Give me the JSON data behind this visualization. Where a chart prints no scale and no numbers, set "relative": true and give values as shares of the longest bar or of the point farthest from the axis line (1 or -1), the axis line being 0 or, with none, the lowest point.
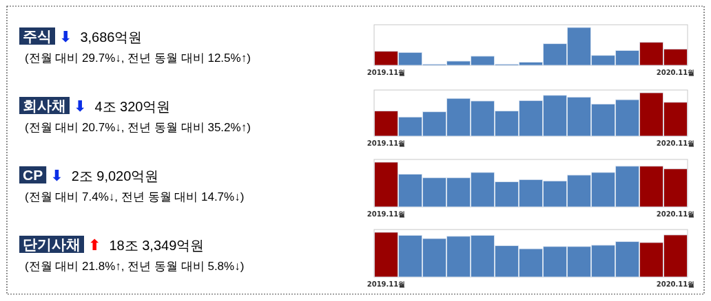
{
  "chart_data": [
    {
      "type": "other",
      "title": "주식",
      "color": "#0b2ee6",
      "subtitle": "3,686억원",
      "annotations": [
        "⬇",
        "(전월 대비 29.7%↓, 전년 동월 대비 12.5%↑)"
      ]
    },
    {
      "type": "bar",
      "relative": true,
      "categories": [
        "2019.11월",
        null,
        null,
        null,
        null,
        null,
        null,
        null,
        null,
        null,
        null,
        null,
        "2020.11월"
      ],
      "values": [
        0.37,
        0.34,
        0.03,
        0.11,
        0.24,
        0.03,
        0.08,
        0.57,
        1,
        0.26,
        0.39,
        0.61,
        0.43
      ],
      "colors": [
        "#990000",
        "#4f81bd",
        "#4f81bd",
        "#4f81bd",
        "#4f81bd",
        "#4f81bd",
        "#4f81bd",
        "#4f81bd",
        "#4f81bd",
        "#4f81bd",
        "#4f81bd",
        "#990000",
        "#990000"
      ]
    },
    {
      "type": "other",
      "title": "회사채",
      "color": "#0b2ee6",
      "subtitle": "4조 320억원",
      "annotations": [
        "⬇",
        "(전월 대비 20.7%↓, 전년 동월 대비 35.2%↑)"
      ]
    },
    {
      "type": "bar",
      "relative": true,
      "categories": [
        "2019.11월",
        null,
        null,
        null,
        null,
        null,
        null,
        null,
        null,
        null,
        null,
        null,
        "2020.11월"
      ],
      "values": [
        0.58,
        0.44,
        0.56,
        0.87,
        0.81,
        0.58,
        0.82,
        0.94,
        0.9,
        0.74,
        0.84,
        1,
        0.78
      ],
      "colors": [
        "#990000",
        "#4f81bd",
        "#4f81bd",
        "#4f81bd",
        "#4f81bd",
        "#4f81bd",
        "#4f81bd",
        "#4f81bd",
        "#4f81bd",
        "#4f81bd",
        "#4f81bd",
        "#990000",
        "#990000"
      ]
    },
    {
      "type": "other",
      "title": "CP",
      "color": "#0b2ee6",
      "subtitle": "2조 9,020억원",
      "annotations": [
        "⬇",
        "(전월 대비 7.4%↓, 전년 동월 대비 14.7%↓)"
      ]
    },
    {
      "type": "bar",
      "relative": true,
      "categories": [
        "2019.11월",
        null,
        null,
        null,
        null,
        null,
        null,
        null,
        null,
        null,
        null,
        null,
        "2020.11월"
      ],
      "values": [
        1,
        0.73,
        0.65,
        0.65,
        0.77,
        0.56,
        0.61,
        0.58,
        0.71,
        0.77,
        0.91,
        0.91,
        0.85
      ],
      "colors": [
        "#990000",
        "#4f81bd",
        "#4f81bd",
        "#4f81bd",
        "#4f81bd",
        "#4f81bd",
        "#4f81bd",
        "#4f81bd",
        "#4f81bd",
        "#4f81bd",
        "#4f81bd",
        "#990000",
        "#990000"
      ]
    },
    {
      "type": "other",
      "title": "단기사채",
      "color": "#ff0000",
      "subtitle": "18조 3,349억원",
      "annotations": [
        "⬆",
        "(전월 대비 21.8%↑, 전년 동월 대비 5.8%↓)"
      ]
    },
    {
      "type": "bar",
      "relative": true,
      "categories": [
        "2019.11월",
        null,
        null,
        null,
        null,
        null,
        null,
        null,
        null,
        null,
        null,
        null,
        "2020.11월"
      ],
      "values": [
        1,
        0.93,
        0.86,
        0.91,
        0.93,
        0.7,
        0.63,
        0.68,
        0.68,
        0.71,
        0.79,
        0.77,
        0.94
      ],
      "colors": [
        "#990000",
        "#4f81bd",
        "#4f81bd",
        "#4f81bd",
        "#4f81bd",
        "#4f81bd",
        "#4f81bd",
        "#4f81bd",
        "#4f81bd",
        "#4f81bd",
        "#4f81bd",
        "#990000",
        "#990000"
      ]
    }
  ]
}
